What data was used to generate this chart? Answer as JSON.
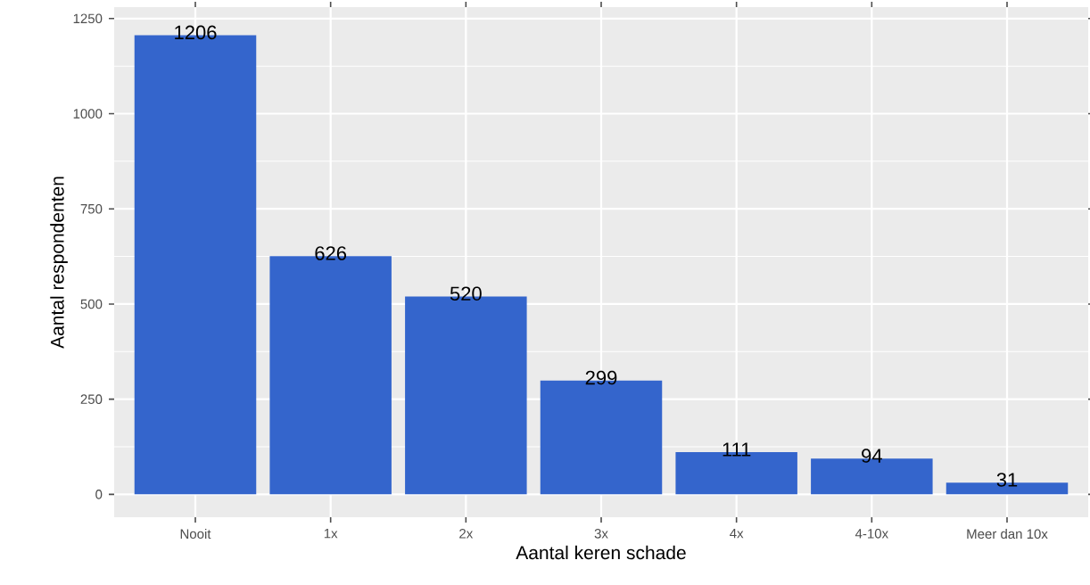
{
  "chart_data": {
    "type": "bar",
    "xlabel": "Aantal keren schade",
    "ylabel": "Aantal respondenten",
    "categories": [
      "Nooit",
      "1x",
      "2x",
      "3x",
      "4x",
      "4-10x",
      "Meer dan 10x"
    ],
    "values": [
      1206,
      626,
      520,
      299,
      111,
      94,
      31
    ],
    "color": "#3465cc",
    "ylim": [
      -60,
      1280
    ],
    "yticks": [
      0,
      250,
      500,
      750,
      1000,
      1250
    ],
    "grid": true,
    "data_labels": true
  }
}
